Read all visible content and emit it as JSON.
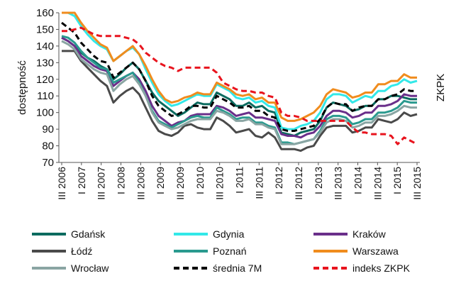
{
  "chart_data": {
    "type": "line",
    "title": "",
    "ylabel": "dostępność",
    "y2label": "ZKPK",
    "ylim": [
      70,
      160
    ],
    "yticks": [
      70,
      80,
      90,
      100,
      110,
      120,
      130,
      140,
      150,
      160
    ],
    "grid": false,
    "legend_position": "bottom",
    "x_tick_labels": [
      "III 2006",
      "I 2007",
      "III 2007",
      "I 2008",
      "III 2008",
      "I 2009",
      "III 2009",
      "I 2010",
      "III 2010",
      "I 2011",
      "III 2011",
      "I 2012",
      "III 2012",
      "I 2013",
      "III 2013",
      "I 2014",
      "III 2014",
      "I 2015",
      "III 2015"
    ],
    "series": [
      {
        "name": "Gdańsk",
        "color": "#0b6b5f",
        "dash": "solid",
        "values": [
          145,
          143,
          140,
          136,
          133,
          131,
          128,
          126,
          120,
          123,
          127,
          130,
          126,
          119,
          112,
          107,
          104,
          101,
          98,
          100,
          103,
          106,
          105,
          105,
          112,
          110,
          108,
          104,
          104,
          106,
          103,
          104,
          101,
          100,
          88,
          87,
          86,
          88,
          89,
          90,
          95,
          103,
          106,
          105,
          104,
          101,
          102,
          104,
          104,
          108,
          108,
          110,
          110,
          109,
          108,
          108
        ]
      },
      {
        "name": "Gdynia",
        "color": "#33e8e8",
        "dash": "solid",
        "values": [
          160,
          160,
          158,
          152,
          147,
          143,
          140,
          138,
          131,
          134,
          137,
          139,
          135,
          126,
          118,
          111,
          107,
          104,
          105,
          107,
          109,
          111,
          110,
          110,
          117,
          115,
          113,
          109,
          108,
          109,
          106,
          107,
          104,
          103,
          91,
          90,
          90,
          92,
          93,
          95,
          100,
          108,
          111,
          111,
          110,
          106,
          108,
          110,
          109,
          113,
          113,
          116,
          117,
          120,
          118,
          119
        ]
      },
      {
        "name": "Kraków",
        "color": "#6a2f8a",
        "dash": "solid",
        "values": [
          145,
          143,
          140,
          134,
          131,
          128,
          126,
          125,
          116,
          119,
          122,
          124,
          120,
          113,
          104,
          98,
          95,
          92,
          94,
          95,
          98,
          99,
          99,
          99,
          104,
          103,
          101,
          98,
          99,
          100,
          97,
          97,
          96,
          95,
          87,
          86,
          86,
          85,
          87,
          88,
          92,
          98,
          101,
          101,
          100,
          97,
          98,
          100,
          100,
          104,
          104,
          105,
          107,
          111,
          110,
          110
        ]
      },
      {
        "name": "Łódź",
        "color": "#4a4a4a",
        "dash": "solid",
        "values": [
          137,
          137,
          137,
          131,
          127,
          123,
          119,
          116,
          106,
          110,
          113,
          115,
          111,
          103,
          95,
          89,
          87,
          86,
          88,
          92,
          93,
          91,
          90,
          90,
          97,
          95,
          92,
          88,
          89,
          90,
          86,
          85,
          88,
          85,
          78,
          78,
          78,
          77,
          79,
          80,
          86,
          91,
          92,
          92,
          92,
          88,
          89,
          91,
          91,
          96,
          95,
          94,
          96,
          100,
          98,
          99
        ]
      },
      {
        "name": "Poznań",
        "color": "#2a9a8f",
        "dash": "solid",
        "values": [
          146,
          145,
          142,
          137,
          133,
          130,
          127,
          126,
          118,
          120,
          122,
          124,
          118,
          110,
          101,
          95,
          93,
          91,
          93,
          95,
          97,
          98,
          97,
          97,
          103,
          101,
          99,
          96,
          97,
          97,
          94,
          94,
          92,
          91,
          82,
          82,
          81,
          82,
          83,
          84,
          89,
          96,
          98,
          98,
          97,
          93,
          94,
          96,
          96,
          100,
          100,
          101,
          103,
          107,
          106,
          106
        ]
      },
      {
        "name": "Warszawa",
        "color": "#f08c1e",
        "dash": "solid",
        "values": [
          160,
          160,
          160,
          154,
          149,
          145,
          141,
          139,
          131,
          134,
          137,
          140,
          135,
          128,
          120,
          113,
          108,
          106,
          107,
          109,
          110,
          112,
          111,
          111,
          118,
          116,
          114,
          111,
          110,
          111,
          108,
          109,
          106,
          106,
          97,
          95,
          95,
          96,
          98,
          100,
          104,
          111,
          114,
          113,
          112,
          109,
          110,
          112,
          112,
          117,
          117,
          119,
          119,
          123,
          121,
          121
        ]
      },
      {
        "name": "Wrocław",
        "color": "#8aa5a3",
        "dash": "solid",
        "values": [
          143,
          141,
          138,
          132,
          129,
          126,
          124,
          123,
          113,
          117,
          120,
          122,
          117,
          110,
          100,
          94,
          92,
          90,
          91,
          93,
          95,
          96,
          96,
          96,
          101,
          100,
          98,
          95,
          95,
          96,
          93,
          93,
          91,
          90,
          81,
          81,
          81,
          82,
          83,
          84,
          88,
          94,
          96,
          96,
          95,
          91,
          92,
          94,
          94,
          98,
          98,
          99,
          101,
          104,
          103,
          103
        ]
      },
      {
        "name": "średnia 7M",
        "color": "#000000",
        "dash": "dashed",
        "values": [
          154,
          151,
          148,
          142,
          138,
          134,
          131,
          130,
          121,
          124,
          127,
          130,
          126,
          119,
          110,
          104,
          101,
          98,
          99,
          101,
          104,
          104,
          103,
          103,
          110,
          108,
          106,
          103,
          103,
          104,
          101,
          101,
          98,
          97,
          90,
          89,
          89,
          90,
          91,
          92,
          96,
          103,
          106,
          105,
          105,
          101,
          103,
          104,
          104,
          108,
          108,
          110,
          111,
          114,
          113,
          113
        ]
      },
      {
        "name": "indeks ZKPK",
        "color": "#e8141e",
        "dash": "dashed",
        "values": [
          149,
          149,
          150,
          151,
          149,
          147,
          146,
          146,
          146,
          146,
          145,
          144,
          141,
          136,
          133,
          130,
          128,
          127,
          125,
          127,
          127,
          127,
          127,
          127,
          124,
          118,
          116,
          114,
          113,
          113,
          112,
          112,
          110,
          109,
          100,
          98,
          98,
          97,
          95,
          95,
          95,
          95,
          95,
          95,
          95,
          91,
          88,
          88,
          87,
          87,
          87,
          86,
          81,
          85,
          83,
          81
        ]
      }
    ]
  }
}
